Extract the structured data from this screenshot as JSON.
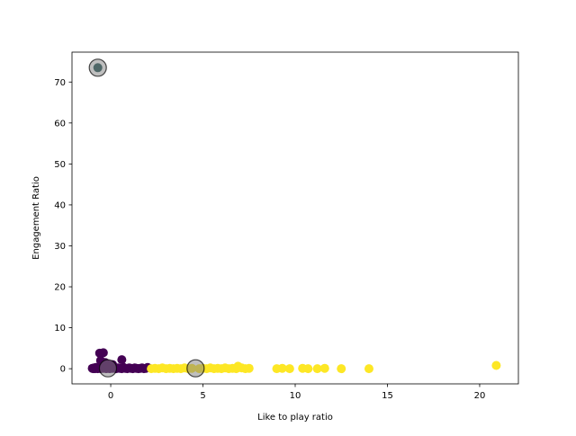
{
  "chart_data": {
    "type": "scatter",
    "title": "",
    "xlabel": "Like to play ratio",
    "ylabel": "Engagement Ratio",
    "xlim": [
      -2.1,
      22.1
    ],
    "ylim": [
      -3.7,
      77.3
    ],
    "xticks": [
      "0",
      "5",
      "10",
      "15",
      "20"
    ],
    "yticks": [
      "0",
      "10",
      "20",
      "30",
      "40",
      "50",
      "60",
      "70"
    ],
    "grid": false,
    "legend": "none",
    "colors": {
      "cluster_0": "#440154",
      "cluster_1": "#fde725",
      "cluster_2": "#1f4e4f",
      "centroid": "#808080"
    },
    "series": [
      {
        "values": [
          [
            -1.0,
            0.1
          ],
          [
            -0.95,
            0.0
          ],
          [
            -0.9,
            0.2
          ],
          [
            -0.85,
            0.0
          ],
          [
            -0.8,
            0.3
          ],
          [
            -0.75,
            0.1
          ],
          [
            -0.7,
            0.0
          ],
          [
            -0.65,
            0.4
          ],
          [
            -0.6,
            0.2
          ],
          [
            -0.55,
            0.0
          ],
          [
            -0.5,
            0.6
          ],
          [
            -0.45,
            0.3
          ],
          [
            -0.4,
            0.1
          ],
          [
            -0.35,
            0.8
          ],
          [
            -0.3,
            0.2
          ],
          [
            -0.25,
            0.0
          ],
          [
            -0.2,
            0.5
          ],
          [
            -0.15,
            0.1
          ],
          [
            -0.1,
            0.3
          ],
          [
            -0.05,
            0.0
          ],
          [
            0.0,
            0.2
          ],
          [
            0.1,
            0.1
          ],
          [
            0.2,
            0.4
          ],
          [
            0.3,
            0.0
          ],
          [
            0.4,
            0.2
          ],
          [
            0.5,
            0.1
          ],
          [
            0.6,
            0.0
          ],
          [
            0.7,
            0.3
          ],
          [
            0.8,
            0.1
          ],
          [
            0.9,
            0.0
          ],
          [
            1.0,
            0.2
          ],
          [
            1.1,
            0.1
          ],
          [
            1.2,
            0.0
          ],
          [
            1.3,
            0.2
          ],
          [
            1.4,
            0.1
          ],
          [
            1.5,
            0.0
          ],
          [
            1.6,
            0.1
          ],
          [
            1.7,
            0.2
          ],
          [
            1.8,
            0.0
          ],
          [
            1.9,
            0.1
          ],
          [
            2.0,
            0.3
          ],
          [
            -0.6,
            3.8
          ],
          [
            -0.4,
            3.9
          ],
          [
            -0.55,
            2.0
          ],
          [
            -0.3,
            1.5
          ],
          [
            -0.2,
            1.2
          ],
          [
            0.6,
            2.2
          ],
          [
            0.1,
            1.0
          ]
        ]
      },
      {
        "values": [
          [
            2.2,
            0.0
          ],
          [
            2.4,
            0.1
          ],
          [
            2.6,
            0.0
          ],
          [
            2.8,
            0.2
          ],
          [
            3.0,
            0.0
          ],
          [
            3.2,
            0.1
          ],
          [
            3.4,
            0.0
          ],
          [
            3.6,
            0.1
          ],
          [
            3.8,
            0.0
          ],
          [
            4.0,
            0.2
          ],
          [
            4.2,
            0.0
          ],
          [
            4.4,
            0.1
          ],
          [
            4.8,
            0.0
          ],
          [
            5.0,
            0.1
          ],
          [
            5.2,
            0.0
          ],
          [
            5.4,
            0.2
          ],
          [
            5.6,
            0.0
          ],
          [
            5.8,
            0.1
          ],
          [
            6.0,
            0.0
          ],
          [
            6.2,
            0.2
          ],
          [
            6.4,
            0.0
          ],
          [
            6.6,
            0.1
          ],
          [
            6.8,
            0.0
          ],
          [
            6.9,
            0.6
          ],
          [
            7.1,
            0.2
          ],
          [
            7.3,
            0.0
          ],
          [
            7.5,
            0.1
          ],
          [
            9.0,
            0.0
          ],
          [
            9.3,
            0.1
          ],
          [
            9.7,
            0.0
          ],
          [
            10.4,
            0.1
          ],
          [
            10.7,
            0.0
          ],
          [
            11.2,
            0.0
          ],
          [
            11.6,
            0.1
          ],
          [
            12.5,
            0.0
          ],
          [
            14.0,
            0.0
          ],
          [
            20.9,
            0.8
          ]
        ]
      },
      {
        "values": [
          [
            -0.7,
            73.5
          ]
        ]
      }
    ],
    "centroids": [
      [
        -0.7,
        73.5
      ],
      [
        -0.15,
        0.1
      ],
      [
        4.6,
        0.1
      ]
    ]
  }
}
